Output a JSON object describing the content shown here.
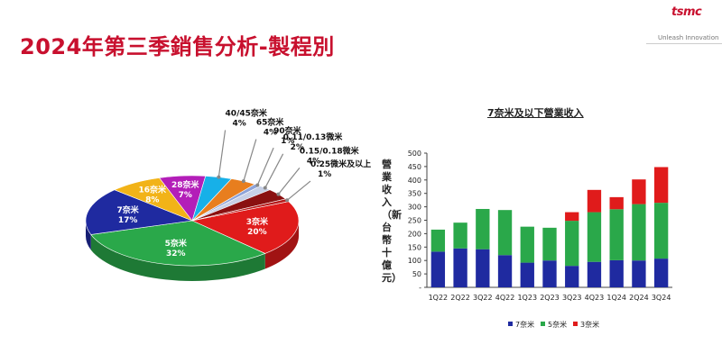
{
  "slide": {
    "title": "2024年第三季銷售分析-製程別",
    "logo_text": "tsmc",
    "tagline": "Unleash Innovation"
  },
  "colors": {
    "accent": "#c8102e",
    "n7": "#1f2aa0",
    "n5": "#2aa84a",
    "n3": "#e01b1b"
  },
  "chart_data": [
    {
      "type": "pie",
      "title": "",
      "slices": [
        {
          "label": "3奈米",
          "value": 20,
          "value_label": "20%",
          "color": "#e01b1b"
        },
        {
          "label": "5奈米",
          "value": 32,
          "value_label": "32%",
          "color": "#2aa84a"
        },
        {
          "label": "7奈米",
          "value": 17,
          "value_label": "17%",
          "color": "#1f2aa0"
        },
        {
          "label": "16奈米",
          "value": 8,
          "value_label": "8%",
          "color": "#f2b318"
        },
        {
          "label": "28奈米",
          "value": 7,
          "value_label": "7%",
          "color": "#b31eb8"
        },
        {
          "label": "40/45奈米",
          "value": 4,
          "value_label": "4%",
          "color": "#17b0e8"
        },
        {
          "label": "65奈米",
          "value": 4,
          "value_label": "4%",
          "color": "#e87e1e"
        },
        {
          "label": "90奈米",
          "value": 1,
          "value_label": "1%",
          "color": "#8ea3d8"
        },
        {
          "label": "0.11/0.13微米",
          "value": 2,
          "value_label": "2%",
          "color": "#c7d0e6"
        },
        {
          "label": "0.15/0.18微米",
          "value": 4,
          "value_label": "4%",
          "color": "#8a1010"
        },
        {
          "label": "0.25微米及以上",
          "value": 1,
          "value_label": "1%",
          "color": "#b51a1a"
        }
      ]
    },
    {
      "type": "bar",
      "stacked": true,
      "title": "7奈米及以下營業收入",
      "ylabel": "營業收入（新台幣十億元）",
      "ylim": [
        0,
        500
      ],
      "yticks": [
        "-",
        "50",
        "100",
        "150",
        "200",
        "250",
        "300",
        "350",
        "400",
        "450",
        "500"
      ],
      "categories": [
        "1Q22",
        "2Q22",
        "3Q22",
        "4Q22",
        "1Q23",
        "2Q23",
        "3Q23",
        "4Q23",
        "1Q24",
        "2Q24",
        "3Q24"
      ],
      "series": [
        {
          "name": "7奈米",
          "color": "#1f2aa0",
          "values": [
            133,
            145,
            142,
            120,
            92,
            100,
            80,
            95,
            101,
            100,
            107
          ]
        },
        {
          "name": "5奈米",
          "color": "#2aa84a",
          "values": [
            82,
            96,
            150,
            168,
            134,
            122,
            168,
            185,
            190,
            210,
            208
          ]
        },
        {
          "name": "3奈米",
          "color": "#e01b1b",
          "values": [
            0,
            0,
            0,
            0,
            0,
            0,
            32,
            83,
            45,
            92,
            133
          ]
        }
      ],
      "grid": false,
      "legend_position": "bottom"
    }
  ]
}
